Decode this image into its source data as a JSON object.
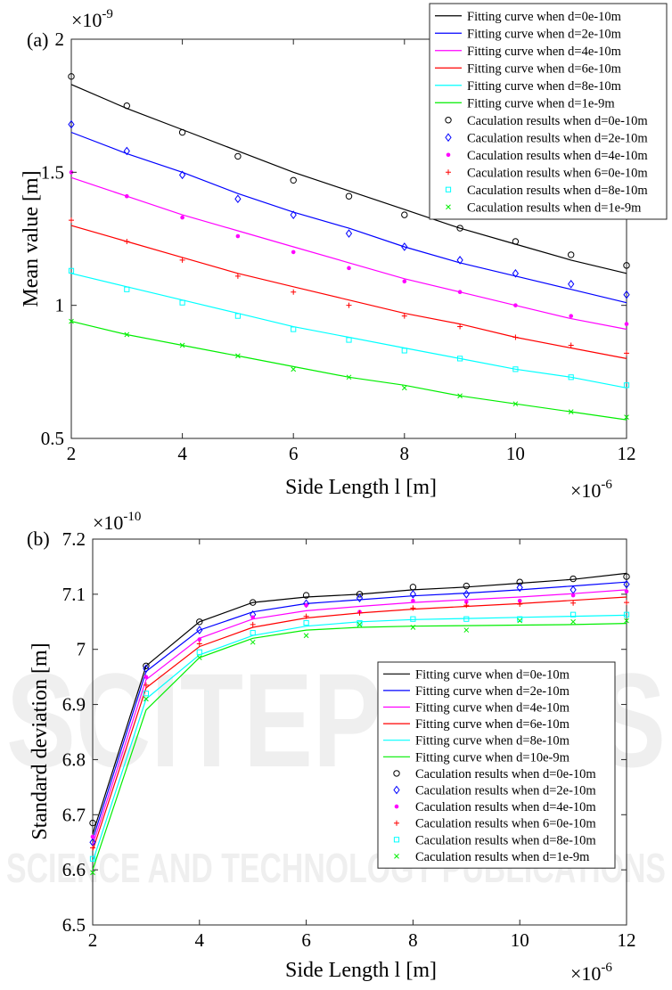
{
  "watermark": {
    "big": "SCITEPRESS",
    "line": "SCIENCE AND TECHNOLOGY PUBLICATIONS"
  },
  "chart_data": [
    {
      "panel_label": "(a)",
      "type": "line",
      "ylabel": "Mean value [m]",
      "xlabel": "Side Length l [m]",
      "y_exponent": "×10",
      "y_exponent_power": "-9",
      "x_exponent": "×10",
      "x_exponent_power": "-6",
      "xlim": [
        2,
        12
      ],
      "ylim": [
        0.5,
        2
      ],
      "xticks": [
        2,
        4,
        6,
        8,
        10,
        12
      ],
      "yticks": [
        0.5,
        1,
        1.5,
        2
      ],
      "xtick_labels": [
        "2",
        "4",
        "6",
        "8",
        "10",
        "12"
      ],
      "ytick_labels": [
        "0.5",
        "1",
        "1.5",
        "2"
      ],
      "legend_position": "top-right",
      "x": [
        2,
        3,
        4,
        5,
        6,
        7,
        8,
        9,
        10,
        11,
        12
      ],
      "series": [
        {
          "name": "Fitting curve when d=0e-10m",
          "kind": "line",
          "color": "#000000",
          "values": [
            1.83,
            1.74,
            1.66,
            1.58,
            1.5,
            1.43,
            1.36,
            1.29,
            1.23,
            1.17,
            1.12
          ]
        },
        {
          "name": "Fitting curve when d=2e-10m",
          "kind": "line",
          "color": "#0000ff",
          "values": [
            1.65,
            1.57,
            1.5,
            1.42,
            1.35,
            1.29,
            1.22,
            1.16,
            1.11,
            1.06,
            1.01
          ]
        },
        {
          "name": "Fitting curve when d=4e-10m",
          "kind": "line",
          "color": "#ff00ff",
          "values": [
            1.48,
            1.41,
            1.34,
            1.28,
            1.22,
            1.16,
            1.1,
            1.05,
            1.0,
            0.95,
            0.91
          ]
        },
        {
          "name": "Fitting curve when d=6e-10m",
          "kind": "line",
          "color": "#ff0000",
          "values": [
            1.3,
            1.24,
            1.18,
            1.12,
            1.07,
            1.02,
            0.97,
            0.93,
            0.88,
            0.84,
            0.8
          ]
        },
        {
          "name": "Fitting curve when d=8e-10m",
          "kind": "line",
          "color": "#00ffff",
          "values": [
            1.12,
            1.07,
            1.02,
            0.97,
            0.92,
            0.88,
            0.84,
            0.8,
            0.76,
            0.73,
            0.69
          ]
        },
        {
          "name": "Fitting curve when d=1e-9m",
          "kind": "line",
          "color": "#00ee00",
          "values": [
            0.94,
            0.89,
            0.85,
            0.81,
            0.77,
            0.73,
            0.7,
            0.66,
            0.63,
            0.6,
            0.57
          ]
        },
        {
          "name": "Caculation results when d=0e-10m",
          "kind": "marker",
          "marker": "circle",
          "color": "#000000",
          "values": [
            1.86,
            1.75,
            1.65,
            1.56,
            1.47,
            1.41,
            1.34,
            1.29,
            1.24,
            1.19,
            1.15
          ]
        },
        {
          "name": "Caculation results when d=2e-10m",
          "kind": "marker",
          "marker": "diamond",
          "color": "#0000ff",
          "values": [
            1.68,
            1.58,
            1.49,
            1.4,
            1.34,
            1.27,
            1.22,
            1.17,
            1.12,
            1.08,
            1.04
          ]
        },
        {
          "name": "Caculation results when d=4e-10m",
          "kind": "marker",
          "marker": "dot",
          "color": "#ff00ff",
          "values": [
            1.5,
            1.41,
            1.33,
            1.26,
            1.2,
            1.14,
            1.09,
            1.05,
            1.0,
            0.96,
            0.93
          ]
        },
        {
          "name": "Caculation results when 6=0e-10m",
          "kind": "marker",
          "marker": "plus",
          "color": "#ff0000",
          "values": [
            1.32,
            1.24,
            1.17,
            1.11,
            1.05,
            1.0,
            0.96,
            0.92,
            0.88,
            0.85,
            0.82
          ]
        },
        {
          "name": "Caculation results when d=8e-10m",
          "kind": "marker",
          "marker": "square",
          "color": "#00ffff",
          "values": [
            1.13,
            1.06,
            1.01,
            0.96,
            0.91,
            0.87,
            0.83,
            0.8,
            0.76,
            0.73,
            0.7
          ]
        },
        {
          "name": "Caculation results when d=1e-9m",
          "kind": "marker",
          "marker": "cross",
          "color": "#00ee00",
          "values": [
            0.94,
            0.89,
            0.85,
            0.81,
            0.76,
            0.73,
            0.69,
            0.66,
            0.63,
            0.6,
            0.58
          ]
        }
      ]
    },
    {
      "panel_label": "(b)",
      "type": "line",
      "ylabel": "Standard deviation [m]",
      "xlabel": "Side Length l [m]",
      "y_exponent": "×10",
      "y_exponent_power": "-10",
      "x_exponent": "×10",
      "x_exponent_power": "-6",
      "xlim": [
        2,
        12
      ],
      "ylim": [
        6.5,
        7.2
      ],
      "xticks": [
        2,
        4,
        6,
        8,
        10,
        12
      ],
      "yticks": [
        6.5,
        6.6,
        6.7,
        6.8,
        6.9,
        7.0,
        7.1,
        7.2
      ],
      "xtick_labels": [
        "2",
        "4",
        "6",
        "8",
        "10",
        "12"
      ],
      "ytick_labels": [
        "6.5",
        "6.6",
        "6.7",
        "6.8",
        "6.9",
        "7",
        "7.1",
        "7.2"
      ],
      "legend_position": "center-right",
      "x": [
        2,
        3,
        4,
        5,
        6,
        7,
        8,
        9,
        10,
        11,
        12
      ],
      "series": [
        {
          "name": "Fitting curve when d=0e-10m",
          "kind": "line",
          "color": "#000000",
          "values": [
            6.665,
            6.97,
            7.05,
            7.085,
            7.095,
            7.1,
            7.108,
            7.113,
            7.12,
            7.127,
            7.138
          ]
        },
        {
          "name": "Fitting curve when d=2e-10m",
          "kind": "line",
          "color": "#0000ff",
          "values": [
            6.655,
            6.96,
            7.035,
            7.068,
            7.083,
            7.09,
            7.097,
            7.102,
            7.108,
            7.115,
            7.122
          ]
        },
        {
          "name": "Fitting curve when d=4e-10m",
          "kind": "line",
          "color": "#ff00ff",
          "values": [
            6.645,
            6.945,
            7.02,
            7.055,
            7.07,
            7.078,
            7.085,
            7.09,
            7.095,
            7.101,
            7.108
          ]
        },
        {
          "name": "Fitting curve when d=6e-10m",
          "kind": "line",
          "color": "#ff0000",
          "values": [
            6.635,
            6.93,
            7.005,
            7.04,
            7.057,
            7.066,
            7.073,
            7.078,
            7.083,
            7.089,
            7.095
          ]
        },
        {
          "name": "Fitting curve when d=8e-10m",
          "kind": "line",
          "color": "#00ffff",
          "values": [
            6.615,
            6.91,
            6.99,
            7.025,
            7.042,
            7.05,
            7.054,
            7.056,
            7.058,
            7.06,
            7.062
          ]
        },
        {
          "name": "Fitting curve when d=10e-9m",
          "kind": "line",
          "color": "#00ee00",
          "values": [
            6.6,
            6.89,
            6.985,
            7.02,
            7.035,
            7.04,
            7.042,
            7.043,
            7.044,
            7.045,
            7.047
          ]
        },
        {
          "name": "Caculation results when d=0e-10m",
          "kind": "marker",
          "marker": "circle",
          "color": "#000000",
          "values": [
            6.685,
            6.97,
            7.05,
            7.085,
            7.098,
            7.1,
            7.113,
            7.115,
            7.122,
            7.128,
            7.132
          ]
        },
        {
          "name": "Caculation results when d=2e-10m",
          "kind": "marker",
          "marker": "diamond",
          "color": "#0000ff",
          "values": [
            6.65,
            6.965,
            7.035,
            7.063,
            7.083,
            7.093,
            7.1,
            7.1,
            7.112,
            7.108,
            7.118
          ]
        },
        {
          "name": "Caculation results when d=4e-10m",
          "kind": "marker",
          "marker": "dot",
          "color": "#ff00ff",
          "values": [
            6.66,
            6.95,
            7.018,
            7.058,
            7.08,
            7.068,
            7.088,
            7.086,
            7.088,
            7.098,
            7.105
          ]
        },
        {
          "name": "Caculation results when 6=0e-10m",
          "kind": "marker",
          "marker": "plus",
          "color": "#ff0000",
          "values": [
            6.64,
            6.935,
            7.01,
            7.045,
            7.06,
            7.066,
            7.075,
            7.08,
            7.082,
            7.084,
            7.085
          ]
        },
        {
          "name": "Caculation results when d=8e-10m",
          "kind": "marker",
          "marker": "square",
          "color": "#00ffff",
          "values": [
            6.62,
            6.92,
            6.995,
            7.03,
            7.048,
            7.048,
            7.055,
            7.055,
            7.055,
            7.063,
            7.063
          ]
        },
        {
          "name": "Caculation results when d=1e-9m",
          "kind": "marker",
          "marker": "cross",
          "color": "#00ee00",
          "values": [
            6.595,
            6.91,
            6.985,
            7.013,
            7.025,
            7.045,
            7.04,
            7.035,
            7.052,
            7.05,
            7.052
          ]
        }
      ]
    }
  ]
}
